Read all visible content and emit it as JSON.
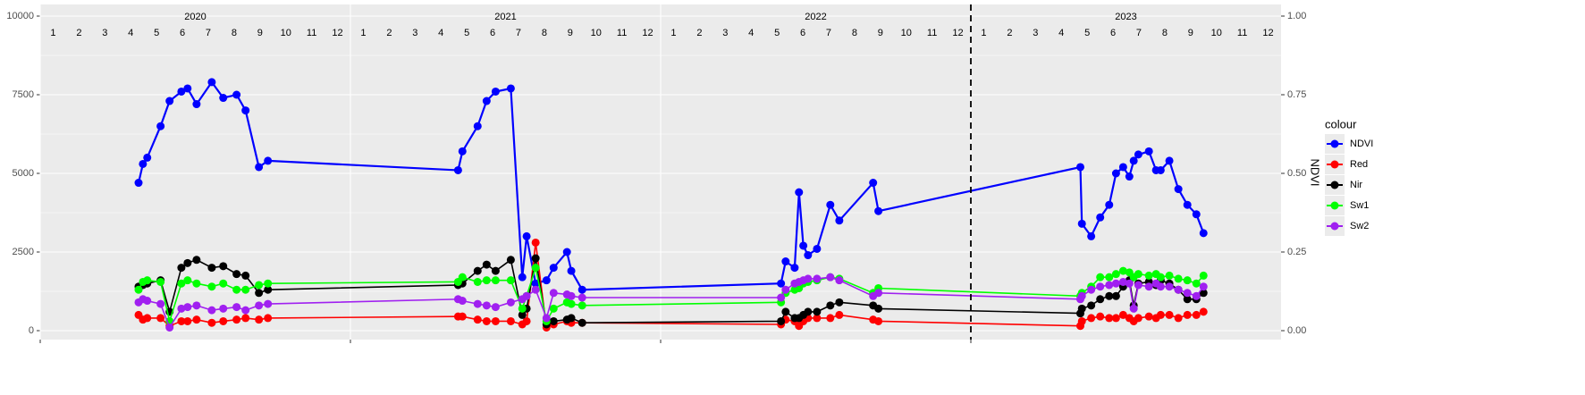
{
  "chart_data": {
    "type": "line",
    "x": [
      2020.317,
      2020.331,
      2020.345,
      2020.388,
      2020.417,
      2020.455,
      2020.475,
      2020.504,
      2020.553,
      2020.59,
      2020.633,
      2020.662,
      2020.705,
      2020.734,
      2021.347,
      2021.361,
      2021.41,
      2021.439,
      2021.468,
      2021.517,
      2021.554,
      2021.568,
      2021.597,
      2021.632,
      2021.655,
      2021.698,
      2021.712,
      2021.747,
      2022.388,
      2022.403,
      2022.432,
      2022.446,
      2022.46,
      2022.475,
      2022.504,
      2022.547,
      2022.576,
      2022.685,
      2022.702,
      2023.353,
      2023.358,
      2023.388,
      2023.417,
      2023.446,
      2023.468,
      2023.491,
      2023.511,
      2023.525,
      2023.54,
      2023.574,
      2023.597,
      2023.612,
      2023.64,
      2023.669,
      2023.698,
      2023.727,
      2023.75
    ],
    "xlim": [
      2020,
      2024
    ],
    "xticks": [
      2020,
      2021,
      2022,
      2023
    ],
    "years": [
      2020,
      2021,
      2022,
      2023
    ],
    "months": [
      1,
      2,
      3,
      4,
      5,
      6,
      7,
      8,
      9,
      10,
      11,
      12
    ],
    "vline": 2023,
    "ylim": [
      0,
      10000
    ],
    "yticks": [
      0,
      2500,
      5000,
      7500,
      10000
    ],
    "y2lim": [
      0,
      1
    ],
    "y2ticks": [
      {
        "value": 0,
        "label": "0.00"
      },
      {
        "value": 0.25,
        "label": "0.25"
      },
      {
        "value": 0.5,
        "label": "0.50"
      },
      {
        "value": 0.75,
        "label": "0.75"
      },
      {
        "value": 1,
        "label": "1.00"
      }
    ],
    "y2label": "NDVI",
    "grid": true,
    "legend_title": "colour",
    "legend_position": "right",
    "series": [
      {
        "name": "NDVI",
        "color": "#0000ff",
        "axis": "y2",
        "values": [
          0.47,
          0.53,
          0.55,
          0.65,
          0.73,
          0.76,
          0.77,
          0.72,
          0.79,
          0.74,
          0.75,
          0.7,
          0.52,
          0.54,
          0.51,
          0.57,
          0.65,
          0.73,
          0.76,
          0.77,
          0.17,
          0.3,
          0.15,
          0.16,
          0.2,
          0.25,
          0.19,
          0.13,
          0.15,
          0.22,
          0.2,
          0.44,
          0.27,
          0.24,
          0.26,
          0.4,
          0.35,
          0.47,
          0.38,
          0.52,
          0.34,
          0.3,
          0.36,
          0.4,
          0.5,
          0.52,
          0.49,
          0.54,
          0.56,
          0.57,
          0.51,
          0.51,
          0.54,
          0.45,
          0.4,
          0.37,
          0.31
        ]
      },
      {
        "name": "Red",
        "color": "#ff0000",
        "values": [
          500,
          350,
          400,
          400,
          150,
          300,
          300,
          350,
          250,
          300,
          350,
          400,
          350,
          400,
          450,
          450,
          350,
          300,
          300,
          300,
          200,
          300,
          2800,
          100,
          200,
          300,
          250,
          250,
          200,
          350,
          300,
          150,
          300,
          400,
          400,
          400,
          500,
          350,
          300,
          150,
          300,
          400,
          450,
          400,
          400,
          500,
          400,
          300,
          400,
          450,
          400,
          500,
          500,
          400,
          500,
          500,
          600
        ]
      },
      {
        "name": "Nir",
        "color": "#000000",
        "values": [
          1400,
          1450,
          1500,
          1600,
          600,
          2000,
          2150,
          2250,
          2000,
          2050,
          1800,
          1750,
          1200,
          1300,
          1450,
          1500,
          1900,
          2100,
          1900,
          2250,
          500,
          700,
          2300,
          200,
          300,
          350,
          400,
          250,
          300,
          600,
          400,
          400,
          500,
          600,
          600,
          800,
          900,
          800,
          700,
          550,
          700,
          800,
          1000,
          1100,
          1100,
          1400,
          1600,
          800,
          1500,
          1550,
          1450,
          1600,
          1500,
          1300,
          1000,
          1000,
          1200
        ]
      },
      {
        "name": "Sw1",
        "color": "#00ff00",
        "values": [
          1300,
          1550,
          1600,
          1550,
          300,
          1500,
          1600,
          1500,
          1400,
          1500,
          1300,
          1300,
          1450,
          1500,
          1550,
          1700,
          1550,
          1600,
          1600,
          1600,
          700,
          1100,
          2000,
          300,
          700,
          900,
          850,
          800,
          900,
          1200,
          1300,
          1350,
          1500,
          1550,
          1600,
          1700,
          1650,
          1200,
          1350,
          1100,
          1200,
          1400,
          1700,
          1700,
          1800,
          1900,
          1850,
          1700,
          1800,
          1750,
          1800,
          1700,
          1750,
          1650,
          1600,
          1500,
          1750
        ]
      },
      {
        "name": "Sw2",
        "color": "#a020f0",
        "values": [
          900,
          1000,
          950,
          850,
          100,
          700,
          750,
          800,
          650,
          700,
          750,
          650,
          800,
          850,
          1000,
          950,
          850,
          800,
          750,
          900,
          1000,
          1100,
          1300,
          400,
          1200,
          1150,
          1100,
          1050,
          1050,
          1300,
          1500,
          1550,
          1600,
          1650,
          1650,
          1700,
          1600,
          1100,
          1200,
          1000,
          1100,
          1300,
          1400,
          1450,
          1500,
          1550,
          1500,
          700,
          1450,
          1400,
          1500,
          1400,
          1400,
          1300,
          1200,
          1100,
          1400
        ]
      }
    ]
  }
}
